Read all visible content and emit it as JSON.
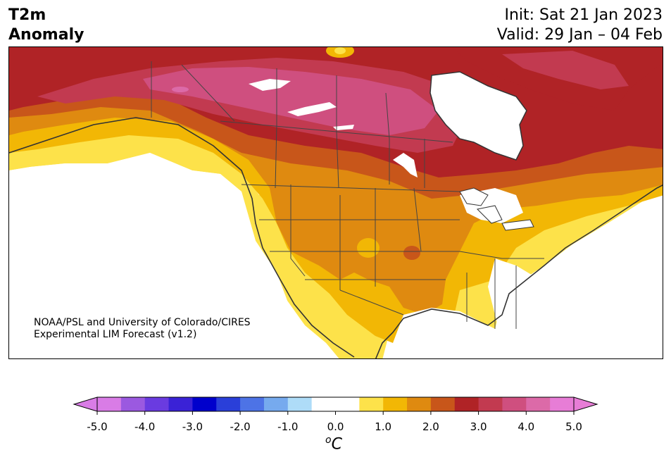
{
  "header": {
    "title_line1": "T2m",
    "title_line2": "Anomaly",
    "init": "Init: Sat 21 Jan 2023",
    "valid": "Valid: 29 Jan – 04 Feb"
  },
  "credit": {
    "line1": "NOAA/PSL and University of Colorado/CIRES",
    "line2": "Experimental LIM Forecast (v1.2)"
  },
  "colorbar": {
    "unit_symbol": "o",
    "unit_letter": "C",
    "ticks": [
      "-5.0",
      "-4.0",
      "-3.0",
      "-2.0",
      "-1.0",
      "0.0",
      "1.0",
      "2.0",
      "3.0",
      "4.0",
      "5.0"
    ],
    "colors": [
      "#d97ce6",
      "#9b59e0",
      "#6a3be0",
      "#3a22d6",
      "#0000cc",
      "#2a3fd9",
      "#4d73e6",
      "#76aaee",
      "#aedcf8",
      "#ffffff",
      "#ffffff",
      "#fde24a",
      "#f2b705",
      "#df8a10",
      "#c8561a",
      "#b02326",
      "#c23a50",
      "#cf4f7f",
      "#dc6aa8",
      "#e77dd6"
    ],
    "under_color": "#d97ce6",
    "over_color": "#e77dd6"
  },
  "map": {
    "region": "North America",
    "field_colors": {
      "white": "#ffffff",
      "yellow": "#fde24a",
      "gold": "#f2b705",
      "orange": "#df8a10",
      "dark_orange": "#c8561a",
      "red": "#b02326",
      "crimson": "#c23a50",
      "pink": "#cf4f7f",
      "light_pink": "#dc6aa8"
    }
  }
}
